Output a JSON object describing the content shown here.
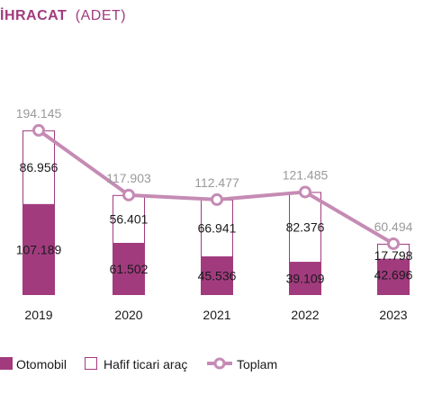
{
  "colors": {
    "otomobil": "#a13b7e",
    "hafif_border": "#a13b7e",
    "hafif_fill": "#ffffff",
    "toplam": "#c58bb4",
    "title": "#a13b7e"
  },
  "chart_data": {
    "type": "bar",
    "title_bold": "İHRACAT",
    "title_light": "(ADET)",
    "categories": [
      "2019",
      "2020",
      "2021",
      "2022",
      "2023"
    ],
    "series": [
      {
        "name": "Otomobil",
        "values": [
          107189,
          61502,
          45536,
          39109,
          42696
        ],
        "labels": [
          "107.189",
          "61.502",
          "45.536",
          "39.109",
          "42.696"
        ]
      },
      {
        "name": "Hafif ticari araç",
        "values": [
          86956,
          56401,
          66941,
          82376,
          17798
        ],
        "labels": [
          "86.956",
          "56.401",
          "66.941",
          "82.376",
          "17.798"
        ]
      },
      {
        "name": "Toplam",
        "values": [
          194145,
          117903,
          112477,
          121485,
          60494
        ],
        "labels": [
          "194.145",
          "117.903",
          "112.477",
          "121.485",
          "60.494"
        ]
      }
    ],
    "stacked": true,
    "legend_position": "bottom-left",
    "grid": false
  }
}
